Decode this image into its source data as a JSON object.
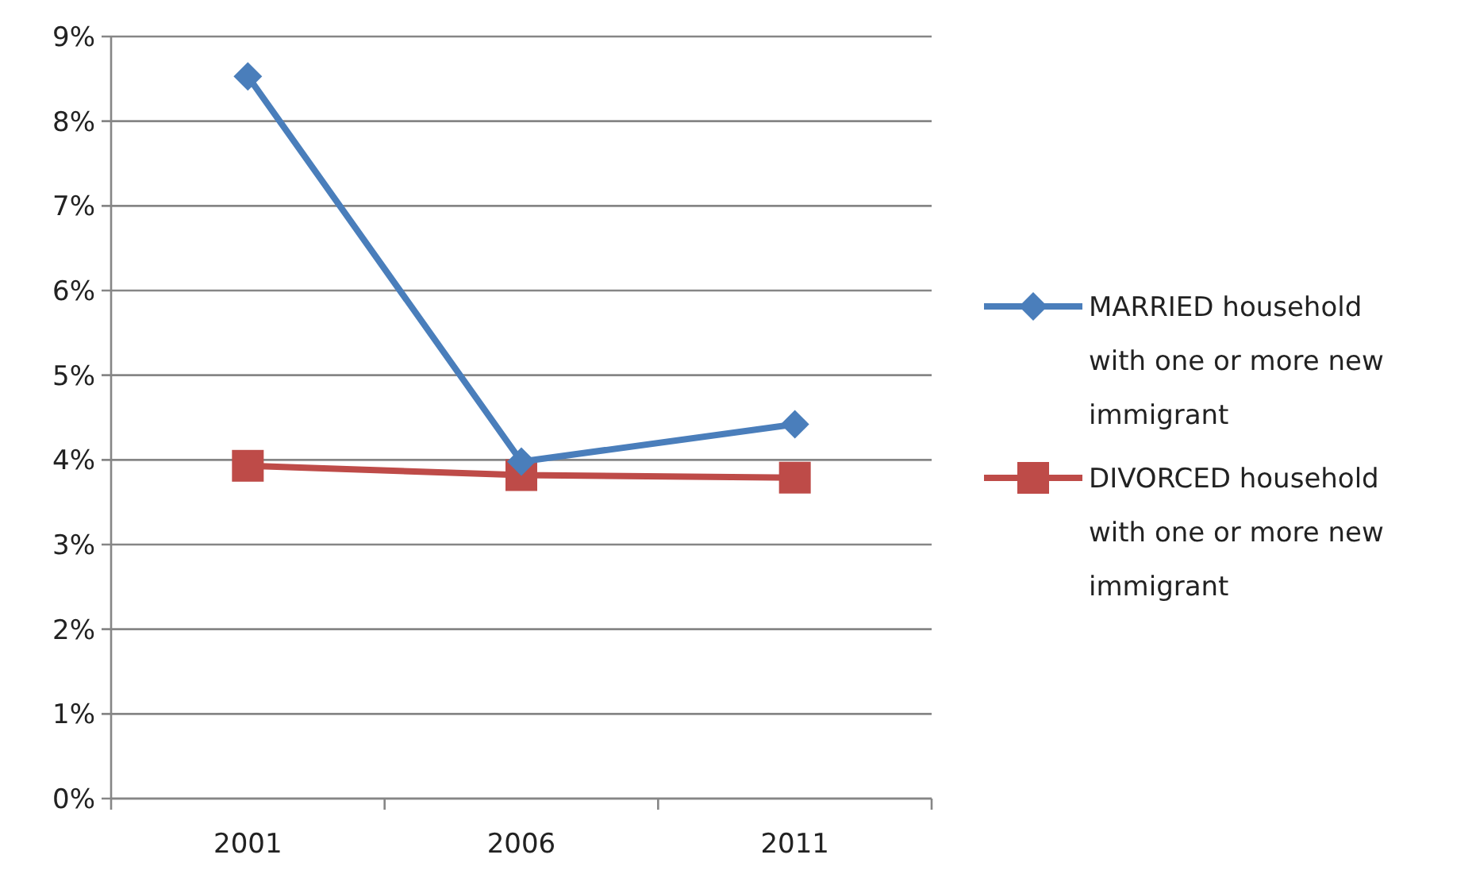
{
  "chart_data": {
    "type": "line",
    "categories": [
      "2001",
      "2006",
      "2011"
    ],
    "series": [
      {
        "name": "MARRIED household with one or more new immigrant",
        "color": "#4a7ebb",
        "values": [
          8.53,
          3.98,
          4.42
        ],
        "marker": "diamond"
      },
      {
        "name": "DIVORCED household with one or more new immigrant",
        "color": "#be4b48",
        "values": [
          3.93,
          3.82,
          3.79
        ],
        "marker": "square"
      }
    ],
    "ylim": [
      0,
      9
    ],
    "yticks": [
      {
        "value": 0,
        "label": "0%"
      },
      {
        "value": 1,
        "label": "1%"
      },
      {
        "value": 2,
        "label": "2%"
      },
      {
        "value": 3,
        "label": "3%"
      },
      {
        "value": 4,
        "label": "4%"
      },
      {
        "value": 5,
        "label": "5%"
      },
      {
        "value": 6,
        "label": "6%"
      },
      {
        "value": 7,
        "label": "7%"
      },
      {
        "value": 8,
        "label": "8%"
      },
      {
        "value": 9,
        "label": "9%"
      }
    ],
    "grid": "y",
    "legend": "right",
    "line_style": "solid"
  }
}
